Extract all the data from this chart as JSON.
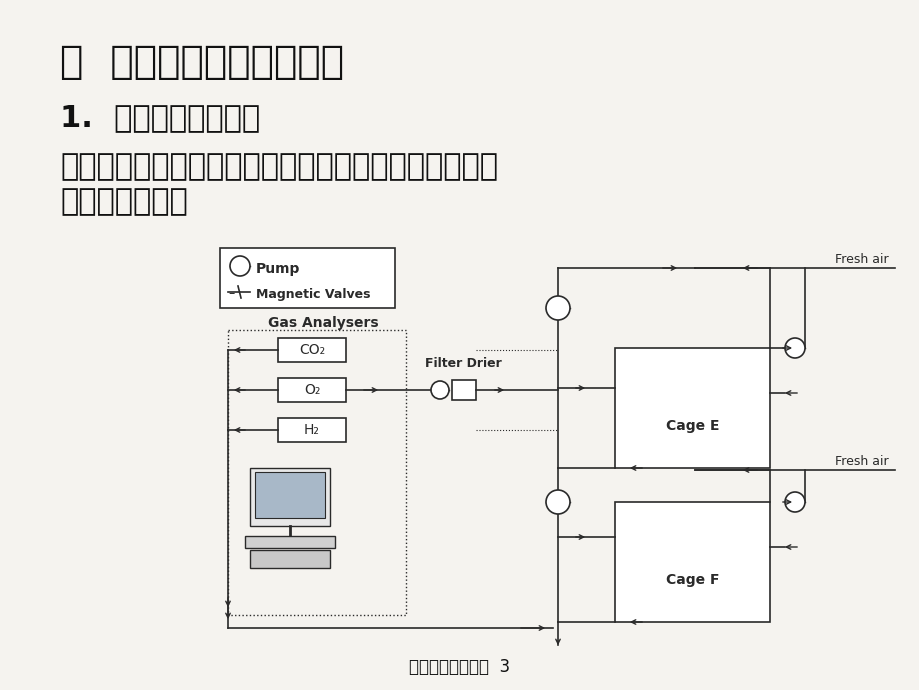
{
  "title1": "二  氧的作用与生物的适应",
  "subtitle1": "1.  氧与动物能量代谢",
  "body_line1": "动物生存必须依靠食物氧化产生的能量。陆生动物耗能",
  "body_line2": "大于水生动物。",
  "footer_text": "生物与大气的关系  3",
  "bg_color": "#f5f3ef",
  "text_color": "#111111",
  "title_fontsize": 28,
  "subtitle_fontsize": 22,
  "body_fontsize": 22,
  "footer_fontsize": 12,
  "legend_pump": "Pump",
  "legend_valve": "–∕–  Magnetic Valves",
  "label_gas": "Gas Analysers",
  "label_co2": "CO₂",
  "label_o2": "O₂",
  "label_h2": "H₂",
  "label_filter": "Filter Drier",
  "label_cageE": "Cage E",
  "label_cageF": "Cage F",
  "label_fresh1": "Fresh air",
  "label_fresh2": "Fresh air",
  "lc": "#2a2a2a",
  "white": "#ffffff"
}
